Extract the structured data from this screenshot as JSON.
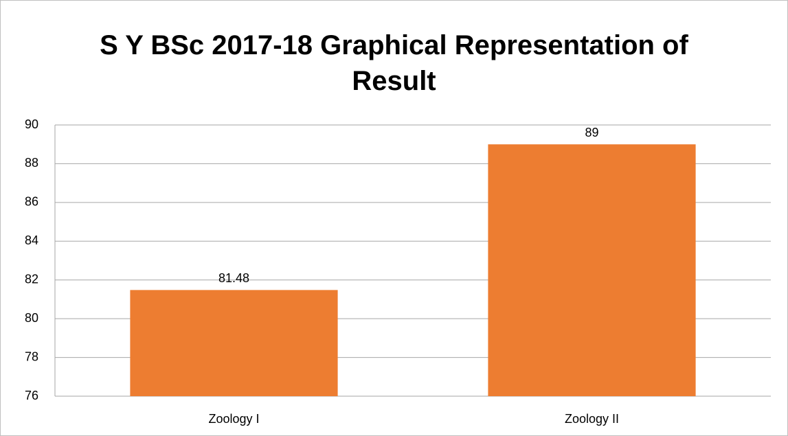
{
  "chart_data": {
    "type": "bar",
    "title": "S Y BSc 2017-18 Graphical Representation of Result",
    "categories": [
      "Zoology I",
      "Zoology II"
    ],
    "values": [
      81.48,
      89
    ],
    "color": "#ed7d31",
    "ylim": [
      76,
      90
    ],
    "yticks": [
      76,
      78,
      80,
      82,
      84,
      86,
      88,
      90
    ],
    "grid": true
  }
}
